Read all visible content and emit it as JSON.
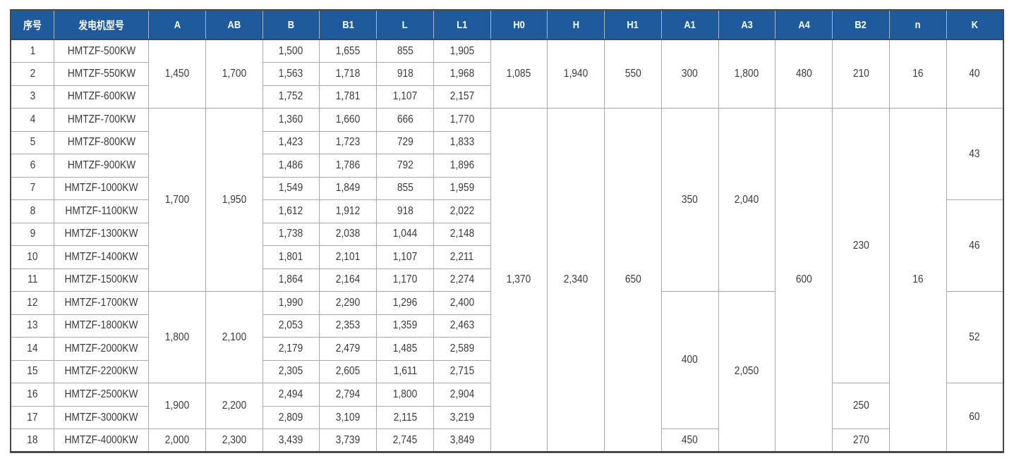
{
  "colors": {
    "header_bg": "#1e5a9c",
    "header_text": "#ffffff",
    "body_text": "#3a3a3a",
    "grid_line": "#a9a9a9",
    "outer_border": "#474747"
  },
  "table": {
    "columns": [
      {
        "key": "xuhao",
        "label": "序号"
      },
      {
        "key": "model",
        "label": "发电机型号"
      },
      {
        "key": "A",
        "label": "A"
      },
      {
        "key": "AB",
        "label": "AB"
      },
      {
        "key": "B",
        "label": "B"
      },
      {
        "key": "B1",
        "label": "B1"
      },
      {
        "key": "L",
        "label": "L"
      },
      {
        "key": "L1",
        "label": "L1"
      },
      {
        "key": "H0",
        "label": "H0"
      },
      {
        "key": "H",
        "label": "H"
      },
      {
        "key": "H1",
        "label": "H1"
      },
      {
        "key": "A1",
        "label": "A1"
      },
      {
        "key": "A3",
        "label": "A3"
      },
      {
        "key": "A4",
        "label": "A4"
      },
      {
        "key": "B2",
        "label": "B2"
      },
      {
        "key": "n",
        "label": "n"
      },
      {
        "key": "K",
        "label": "K"
      }
    ],
    "rows": [
      [
        {
          "v": "1"
        },
        {
          "v": "HMTZF-500KW"
        },
        {
          "v": "1,450",
          "rs": 3
        },
        {
          "v": "1,700",
          "rs": 3
        },
        {
          "v": "1,500"
        },
        {
          "v": "1,655"
        },
        {
          "v": "855"
        },
        {
          "v": "1,905"
        },
        {
          "v": "1,085",
          "rs": 3
        },
        {
          "v": "1,940",
          "rs": 3
        },
        {
          "v": "550",
          "rs": 3
        },
        {
          "v": "300",
          "rs": 3
        },
        {
          "v": "1,800",
          "rs": 3
        },
        {
          "v": "480",
          "rs": 3
        },
        {
          "v": "210",
          "rs": 3
        },
        {
          "v": "16",
          "rs": 3
        },
        {
          "v": "40",
          "rs": 3
        }
      ],
      [
        {
          "v": "2"
        },
        {
          "v": "HMTZF-550KW"
        },
        {
          "v": "1,563"
        },
        {
          "v": "1,718"
        },
        {
          "v": "918"
        },
        {
          "v": "1,968"
        }
      ],
      [
        {
          "v": "3"
        },
        {
          "v": "HMTZF-600KW"
        },
        {
          "v": "1,752"
        },
        {
          "v": "1,781"
        },
        {
          "v": "1,107"
        },
        {
          "v": "2,157"
        }
      ],
      [
        {
          "v": "4"
        },
        {
          "v": "HMTZF-700KW"
        },
        {
          "v": "1,700",
          "rs": 8
        },
        {
          "v": "1,950",
          "rs": 8
        },
        {
          "v": "1,360"
        },
        {
          "v": "1,660"
        },
        {
          "v": "666"
        },
        {
          "v": "1,770"
        },
        {
          "v": "1,370",
          "rs": 15
        },
        {
          "v": "2,340",
          "rs": 15
        },
        {
          "v": "650",
          "rs": 15
        },
        {
          "v": "350",
          "rs": 8
        },
        {
          "v": "2,040",
          "rs": 8
        },
        {
          "v": "600",
          "rs": 15
        },
        {
          "v": "230",
          "rs": 12
        },
        {
          "v": "16",
          "rs": 15
        },
        {
          "v": "43",
          "rs": 4
        }
      ],
      [
        {
          "v": "5"
        },
        {
          "v": "HMTZF-800KW"
        },
        {
          "v": "1,423"
        },
        {
          "v": "1,723"
        },
        {
          "v": "729"
        },
        {
          "v": "1,833"
        }
      ],
      [
        {
          "v": "6"
        },
        {
          "v": "HMTZF-900KW"
        },
        {
          "v": "1,486"
        },
        {
          "v": "1,786"
        },
        {
          "v": "792"
        },
        {
          "v": "1,896"
        }
      ],
      [
        {
          "v": "7"
        },
        {
          "v": "HMTZF-1000KW"
        },
        {
          "v": "1,549"
        },
        {
          "v": "1,849"
        },
        {
          "v": "855"
        },
        {
          "v": "1,959"
        }
      ],
      [
        {
          "v": "8"
        },
        {
          "v": "HMTZF-1100KW"
        },
        {
          "v": "1,612"
        },
        {
          "v": "1,912"
        },
        {
          "v": "918"
        },
        {
          "v": "2,022"
        },
        {
          "v": "46",
          "rs": 4
        }
      ],
      [
        {
          "v": "9"
        },
        {
          "v": "HMTZF-1300KW"
        },
        {
          "v": "1,738"
        },
        {
          "v": "2,038"
        },
        {
          "v": "1,044"
        },
        {
          "v": "2,148"
        }
      ],
      [
        {
          "v": "10"
        },
        {
          "v": "HMTZF-1400KW"
        },
        {
          "v": "1,801"
        },
        {
          "v": "2,101"
        },
        {
          "v": "1,107"
        },
        {
          "v": "2,211"
        }
      ],
      [
        {
          "v": "11"
        },
        {
          "v": "HMTZF-1500KW"
        },
        {
          "v": "1,864"
        },
        {
          "v": "2,164"
        },
        {
          "v": "1,170"
        },
        {
          "v": "2,274"
        }
      ],
      [
        {
          "v": "12"
        },
        {
          "v": "HMTZF-1700KW"
        },
        {
          "v": "1,800",
          "rs": 4
        },
        {
          "v": "2,100",
          "rs": 4
        },
        {
          "v": "1,990"
        },
        {
          "v": "2,290"
        },
        {
          "v": "1,296"
        },
        {
          "v": "2,400"
        },
        {
          "v": "400",
          "rs": 6
        },
        {
          "v": "2,050",
          "rs": 7
        },
        {
          "v": "52",
          "rs": 4
        }
      ],
      [
        {
          "v": "13"
        },
        {
          "v": "HMTZF-1800KW"
        },
        {
          "v": "2,053"
        },
        {
          "v": "2,353"
        },
        {
          "v": "1,359"
        },
        {
          "v": "2,463"
        }
      ],
      [
        {
          "v": "14"
        },
        {
          "v": "HMTZF-2000KW"
        },
        {
          "v": "2,179"
        },
        {
          "v": "2,479"
        },
        {
          "v": "1,485"
        },
        {
          "v": "2,589"
        }
      ],
      [
        {
          "v": "15"
        },
        {
          "v": "HMTZF-2200KW"
        },
        {
          "v": "2,305"
        },
        {
          "v": "2,605"
        },
        {
          "v": "1,611"
        },
        {
          "v": "2,715"
        }
      ],
      [
        {
          "v": "16"
        },
        {
          "v": "HMTZF-2500KW"
        },
        {
          "v": "1,900",
          "rs": 2
        },
        {
          "v": "2,200",
          "rs": 2
        },
        {
          "v": "2,494"
        },
        {
          "v": "2,794"
        },
        {
          "v": "1,800"
        },
        {
          "v": "2,904"
        },
        {
          "v": "250",
          "rs": 2
        },
        {
          "v": "60",
          "rs": 3
        }
      ],
      [
        {
          "v": "17"
        },
        {
          "v": "HMTZF-3000KW"
        },
        {
          "v": "2,809"
        },
        {
          "v": "3,109"
        },
        {
          "v": "2,115"
        },
        {
          "v": "3,219"
        }
      ],
      [
        {
          "v": "18"
        },
        {
          "v": "HMTZF-4000KW"
        },
        {
          "v": "2,000"
        },
        {
          "v": "2,300"
        },
        {
          "v": "3,439"
        },
        {
          "v": "3,739"
        },
        {
          "v": "2,745"
        },
        {
          "v": "3,849"
        },
        {
          "v": "450"
        },
        {
          "v": "270"
        }
      ]
    ]
  }
}
